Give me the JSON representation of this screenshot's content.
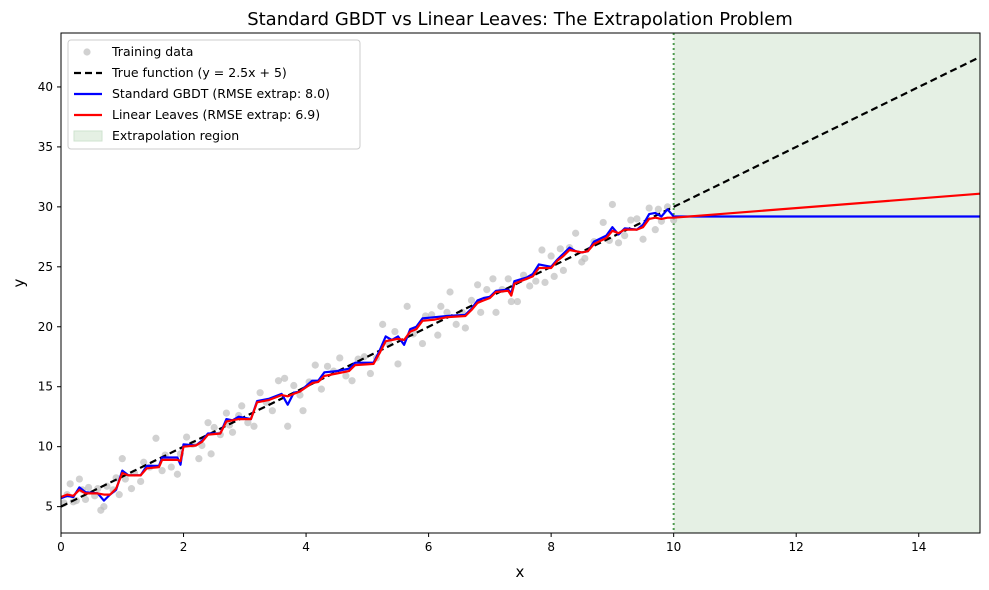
{
  "chart_data": {
    "type": "line",
    "title": "Standard GBDT vs Linear Leaves: The Extrapolation Problem",
    "xlabel": "x",
    "ylabel": "y",
    "xlim": [
      0,
      15
    ],
    "ylim": [
      2.8,
      44.5
    ],
    "xticks": [
      0,
      2,
      4,
      6,
      8,
      10,
      12,
      14
    ],
    "yticks": [
      5,
      10,
      15,
      20,
      25,
      30,
      35,
      40
    ],
    "grid": false,
    "legend_position": "top-left",
    "extrapolation_region": {
      "x_start": 10,
      "x_end": 15,
      "color": "#e5f0e4",
      "boundary_color": "#4e9a4e",
      "label": "Extrapolation region"
    },
    "series": [
      {
        "name": "Training data",
        "kind": "scatter",
        "color": "#bdbdbd",
        "points": [
          [
            0.05,
            5.3
          ],
          [
            0.1,
            6.0
          ],
          [
            0.15,
            6.9
          ],
          [
            0.2,
            5.4
          ],
          [
            0.25,
            5.5
          ],
          [
            0.3,
            7.3
          ],
          [
            0.35,
            6.4
          ],
          [
            0.4,
            5.6
          ],
          [
            0.45,
            6.6
          ],
          [
            0.55,
            5.9
          ],
          [
            0.6,
            6.5
          ],
          [
            0.65,
            4.7
          ],
          [
            0.7,
            5.0
          ],
          [
            0.75,
            6.7
          ],
          [
            0.85,
            6.4
          ],
          [
            0.9,
            7.4
          ],
          [
            0.95,
            6.0
          ],
          [
            1.0,
            9.0
          ],
          [
            1.05,
            7.3
          ],
          [
            1.15,
            6.5
          ],
          [
            1.2,
            7.8
          ],
          [
            1.3,
            7.1
          ],
          [
            1.35,
            8.7
          ],
          [
            1.45,
            8.3
          ],
          [
            1.55,
            10.7
          ],
          [
            1.65,
            8.0
          ],
          [
            1.7,
            9.3
          ],
          [
            1.8,
            8.3
          ],
          [
            1.9,
            7.7
          ],
          [
            1.95,
            9.4
          ],
          [
            2.05,
            10.8
          ],
          [
            2.15,
            10.2
          ],
          [
            2.25,
            9.0
          ],
          [
            2.3,
            10.1
          ],
          [
            2.4,
            12.0
          ],
          [
            2.45,
            9.4
          ],
          [
            2.5,
            11.6
          ],
          [
            2.6,
            11.0
          ],
          [
            2.7,
            12.8
          ],
          [
            2.75,
            11.8
          ],
          [
            2.8,
            11.2
          ],
          [
            2.9,
            12.6
          ],
          [
            2.95,
            13.4
          ],
          [
            3.05,
            12.0
          ],
          [
            3.15,
            11.7
          ],
          [
            3.25,
            14.5
          ],
          [
            3.35,
            13.7
          ],
          [
            3.45,
            13.0
          ],
          [
            3.55,
            15.5
          ],
          [
            3.65,
            15.7
          ],
          [
            3.7,
            11.7
          ],
          [
            3.8,
            15.1
          ],
          [
            3.9,
            14.3
          ],
          [
            3.95,
            13.0
          ],
          [
            4.05,
            15.4
          ],
          [
            4.15,
            16.8
          ],
          [
            4.25,
            14.8
          ],
          [
            4.35,
            16.7
          ],
          [
            4.45,
            16.3
          ],
          [
            4.55,
            17.4
          ],
          [
            4.65,
            15.9
          ],
          [
            4.75,
            15.5
          ],
          [
            4.85,
            17.3
          ],
          [
            4.95,
            17.5
          ],
          [
            5.05,
            16.1
          ],
          [
            5.15,
            17.4
          ],
          [
            5.25,
            20.2
          ],
          [
            5.35,
            18.6
          ],
          [
            5.45,
            19.6
          ],
          [
            5.5,
            16.9
          ],
          [
            5.65,
            21.7
          ],
          [
            5.75,
            19.4
          ],
          [
            5.9,
            18.6
          ],
          [
            5.95,
            20.9
          ],
          [
            6.05,
            21.0
          ],
          [
            6.15,
            19.3
          ],
          [
            6.2,
            21.7
          ],
          [
            6.3,
            21.2
          ],
          [
            6.35,
            22.9
          ],
          [
            6.45,
            20.2
          ],
          [
            6.55,
            21.2
          ],
          [
            6.6,
            19.9
          ],
          [
            6.7,
            22.2
          ],
          [
            6.8,
            23.5
          ],
          [
            6.85,
            21.2
          ],
          [
            6.95,
            23.1
          ],
          [
            7.05,
            24.0
          ],
          [
            7.1,
            21.2
          ],
          [
            7.2,
            23.1
          ],
          [
            7.3,
            24.0
          ],
          [
            7.35,
            22.1
          ],
          [
            7.45,
            22.1
          ],
          [
            7.55,
            24.3
          ],
          [
            7.65,
            23.4
          ],
          [
            7.75,
            23.8
          ],
          [
            7.85,
            26.4
          ],
          [
            7.9,
            23.7
          ],
          [
            8.0,
            25.9
          ],
          [
            8.05,
            24.2
          ],
          [
            8.15,
            26.5
          ],
          [
            8.2,
            24.7
          ],
          [
            8.3,
            26.6
          ],
          [
            8.4,
            27.8
          ],
          [
            8.5,
            25.4
          ],
          [
            8.55,
            25.7
          ],
          [
            8.7,
            27.1
          ],
          [
            8.85,
            28.7
          ],
          [
            8.95,
            27.2
          ],
          [
            9.0,
            30.2
          ],
          [
            9.1,
            27.0
          ],
          [
            9.2,
            27.6
          ],
          [
            9.3,
            28.9
          ],
          [
            9.4,
            29.0
          ],
          [
            9.5,
            27.3
          ],
          [
            9.6,
            29.9
          ],
          [
            9.7,
            28.1
          ],
          [
            9.75,
            29.8
          ],
          [
            9.8,
            28.8
          ],
          [
            9.9,
            30.0
          ],
          [
            10.0,
            28.9
          ]
        ]
      },
      {
        "name": "True function (y = 2.5x + 5)",
        "kind": "line",
        "style": "dashed",
        "color": "#000000",
        "points": [
          [
            0,
            5
          ],
          [
            15,
            42.5
          ]
        ]
      },
      {
        "name": "Standard GBDT (RMSE extrap: 8.0)",
        "kind": "line",
        "color": "#0000ff",
        "points": [
          [
            0,
            5.7
          ],
          [
            0.1,
            5.9
          ],
          [
            0.2,
            5.8
          ],
          [
            0.3,
            6.6
          ],
          [
            0.4,
            6.2
          ],
          [
            0.6,
            6.1
          ],
          [
            0.7,
            5.5
          ],
          [
            0.8,
            6.0
          ],
          [
            0.9,
            6.4
          ],
          [
            1.0,
            8.0
          ],
          [
            1.1,
            7.6
          ],
          [
            1.3,
            7.6
          ],
          [
            1.4,
            8.4
          ],
          [
            1.6,
            8.4
          ],
          [
            1.65,
            9.1
          ],
          [
            1.9,
            9.1
          ],
          [
            1.95,
            8.5
          ],
          [
            2.0,
            10.2
          ],
          [
            2.2,
            10.1
          ],
          [
            2.3,
            10.5
          ],
          [
            2.4,
            11.1
          ],
          [
            2.6,
            11.1
          ],
          [
            2.7,
            12.3
          ],
          [
            2.8,
            12.2
          ],
          [
            2.9,
            12.5
          ],
          [
            3.1,
            12.3
          ],
          [
            3.2,
            13.8
          ],
          [
            3.4,
            14.0
          ],
          [
            3.6,
            14.4
          ],
          [
            3.7,
            13.5
          ],
          [
            3.8,
            14.5
          ],
          [
            3.9,
            14.6
          ],
          [
            4.1,
            15.5
          ],
          [
            4.2,
            15.5
          ],
          [
            4.3,
            16.2
          ],
          [
            4.5,
            16.3
          ],
          [
            4.7,
            16.5
          ],
          [
            4.8,
            17.0
          ],
          [
            5.1,
            17.0
          ],
          [
            5.2,
            18.0
          ],
          [
            5.3,
            19.2
          ],
          [
            5.4,
            18.9
          ],
          [
            5.5,
            19.2
          ],
          [
            5.6,
            18.5
          ],
          [
            5.7,
            19.8
          ],
          [
            5.8,
            20.0
          ],
          [
            5.9,
            20.7
          ],
          [
            6.1,
            20.8
          ],
          [
            6.3,
            20.9
          ],
          [
            6.6,
            21.0
          ],
          [
            6.7,
            21.5
          ],
          [
            6.8,
            22.2
          ],
          [
            6.9,
            22.4
          ],
          [
            7.0,
            22.5
          ],
          [
            7.1,
            23.0
          ],
          [
            7.3,
            23.1
          ],
          [
            7.35,
            22.8
          ],
          [
            7.4,
            23.8
          ],
          [
            7.6,
            24.1
          ],
          [
            7.7,
            24.4
          ],
          [
            7.8,
            25.2
          ],
          [
            8.0,
            25.0
          ],
          [
            8.1,
            25.6
          ],
          [
            8.2,
            26.1
          ],
          [
            8.3,
            26.6
          ],
          [
            8.4,
            26.3
          ],
          [
            8.5,
            26.2
          ],
          [
            8.6,
            26.3
          ],
          [
            8.7,
            27.1
          ],
          [
            8.9,
            27.6
          ],
          [
            9.0,
            28.3
          ],
          [
            9.1,
            27.7
          ],
          [
            9.2,
            28.2
          ],
          [
            9.4,
            28.1
          ],
          [
            9.5,
            28.5
          ],
          [
            9.6,
            29.4
          ],
          [
            9.7,
            29.5
          ],
          [
            9.8,
            29.2
          ],
          [
            9.9,
            29.8
          ],
          [
            10.0,
            29.2
          ],
          [
            15,
            29.2
          ]
        ]
      },
      {
        "name": "Linear Leaves (RMSE extrap: 6.9)",
        "kind": "line",
        "color": "#ff0000",
        "points": [
          [
            0,
            5.8
          ],
          [
            0.1,
            6.0
          ],
          [
            0.2,
            5.9
          ],
          [
            0.3,
            6.4
          ],
          [
            0.4,
            6.1
          ],
          [
            0.6,
            6.1
          ],
          [
            0.7,
            6.0
          ],
          [
            0.8,
            6.0
          ],
          [
            0.9,
            6.5
          ],
          [
            1.0,
            7.8
          ],
          [
            1.1,
            7.6
          ],
          [
            1.3,
            7.6
          ],
          [
            1.4,
            8.2
          ],
          [
            1.6,
            8.3
          ],
          [
            1.65,
            8.9
          ],
          [
            1.9,
            8.9
          ],
          [
            1.95,
            8.8
          ],
          [
            2.0,
            10.0
          ],
          [
            2.2,
            10.1
          ],
          [
            2.3,
            10.4
          ],
          [
            2.4,
            11.0
          ],
          [
            2.6,
            11.1
          ],
          [
            2.7,
            12.1
          ],
          [
            2.8,
            12.2
          ],
          [
            2.9,
            12.3
          ],
          [
            3.1,
            12.3
          ],
          [
            3.2,
            13.7
          ],
          [
            3.4,
            13.9
          ],
          [
            3.6,
            14.3
          ],
          [
            3.7,
            14.2
          ],
          [
            3.8,
            14.4
          ],
          [
            3.9,
            14.6
          ],
          [
            4.1,
            15.3
          ],
          [
            4.2,
            15.4
          ],
          [
            4.3,
            15.9
          ],
          [
            4.5,
            16.1
          ],
          [
            4.7,
            16.3
          ],
          [
            4.8,
            16.8
          ],
          [
            5.1,
            16.9
          ],
          [
            5.2,
            17.8
          ],
          [
            5.3,
            18.8
          ],
          [
            5.4,
            18.9
          ],
          [
            5.5,
            19.0
          ],
          [
            5.6,
            18.9
          ],
          [
            5.7,
            19.6
          ],
          [
            5.8,
            19.8
          ],
          [
            5.9,
            20.5
          ],
          [
            6.1,
            20.6
          ],
          [
            6.3,
            20.8
          ],
          [
            6.6,
            20.9
          ],
          [
            6.7,
            21.4
          ],
          [
            6.8,
            22.0
          ],
          [
            6.9,
            22.2
          ],
          [
            7.0,
            22.4
          ],
          [
            7.1,
            22.9
          ],
          [
            7.3,
            23.0
          ],
          [
            7.35,
            22.6
          ],
          [
            7.4,
            23.6
          ],
          [
            7.6,
            24.0
          ],
          [
            7.7,
            24.2
          ],
          [
            7.8,
            24.9
          ],
          [
            8.0,
            24.9
          ],
          [
            8.1,
            25.5
          ],
          [
            8.2,
            25.9
          ],
          [
            8.3,
            26.4
          ],
          [
            8.4,
            26.3
          ],
          [
            8.5,
            26.2
          ],
          [
            8.6,
            26.3
          ],
          [
            8.7,
            26.9
          ],
          [
            8.9,
            27.4
          ],
          [
            9.0,
            28.0
          ],
          [
            9.1,
            27.8
          ],
          [
            9.2,
            28.1
          ],
          [
            9.4,
            28.1
          ],
          [
            9.5,
            28.3
          ],
          [
            9.6,
            29.0
          ],
          [
            9.7,
            29.1
          ],
          [
            9.8,
            29.0
          ],
          [
            9.9,
            29.1
          ],
          [
            10.0,
            29.1
          ],
          [
            15,
            31.1
          ]
        ]
      }
    ]
  }
}
